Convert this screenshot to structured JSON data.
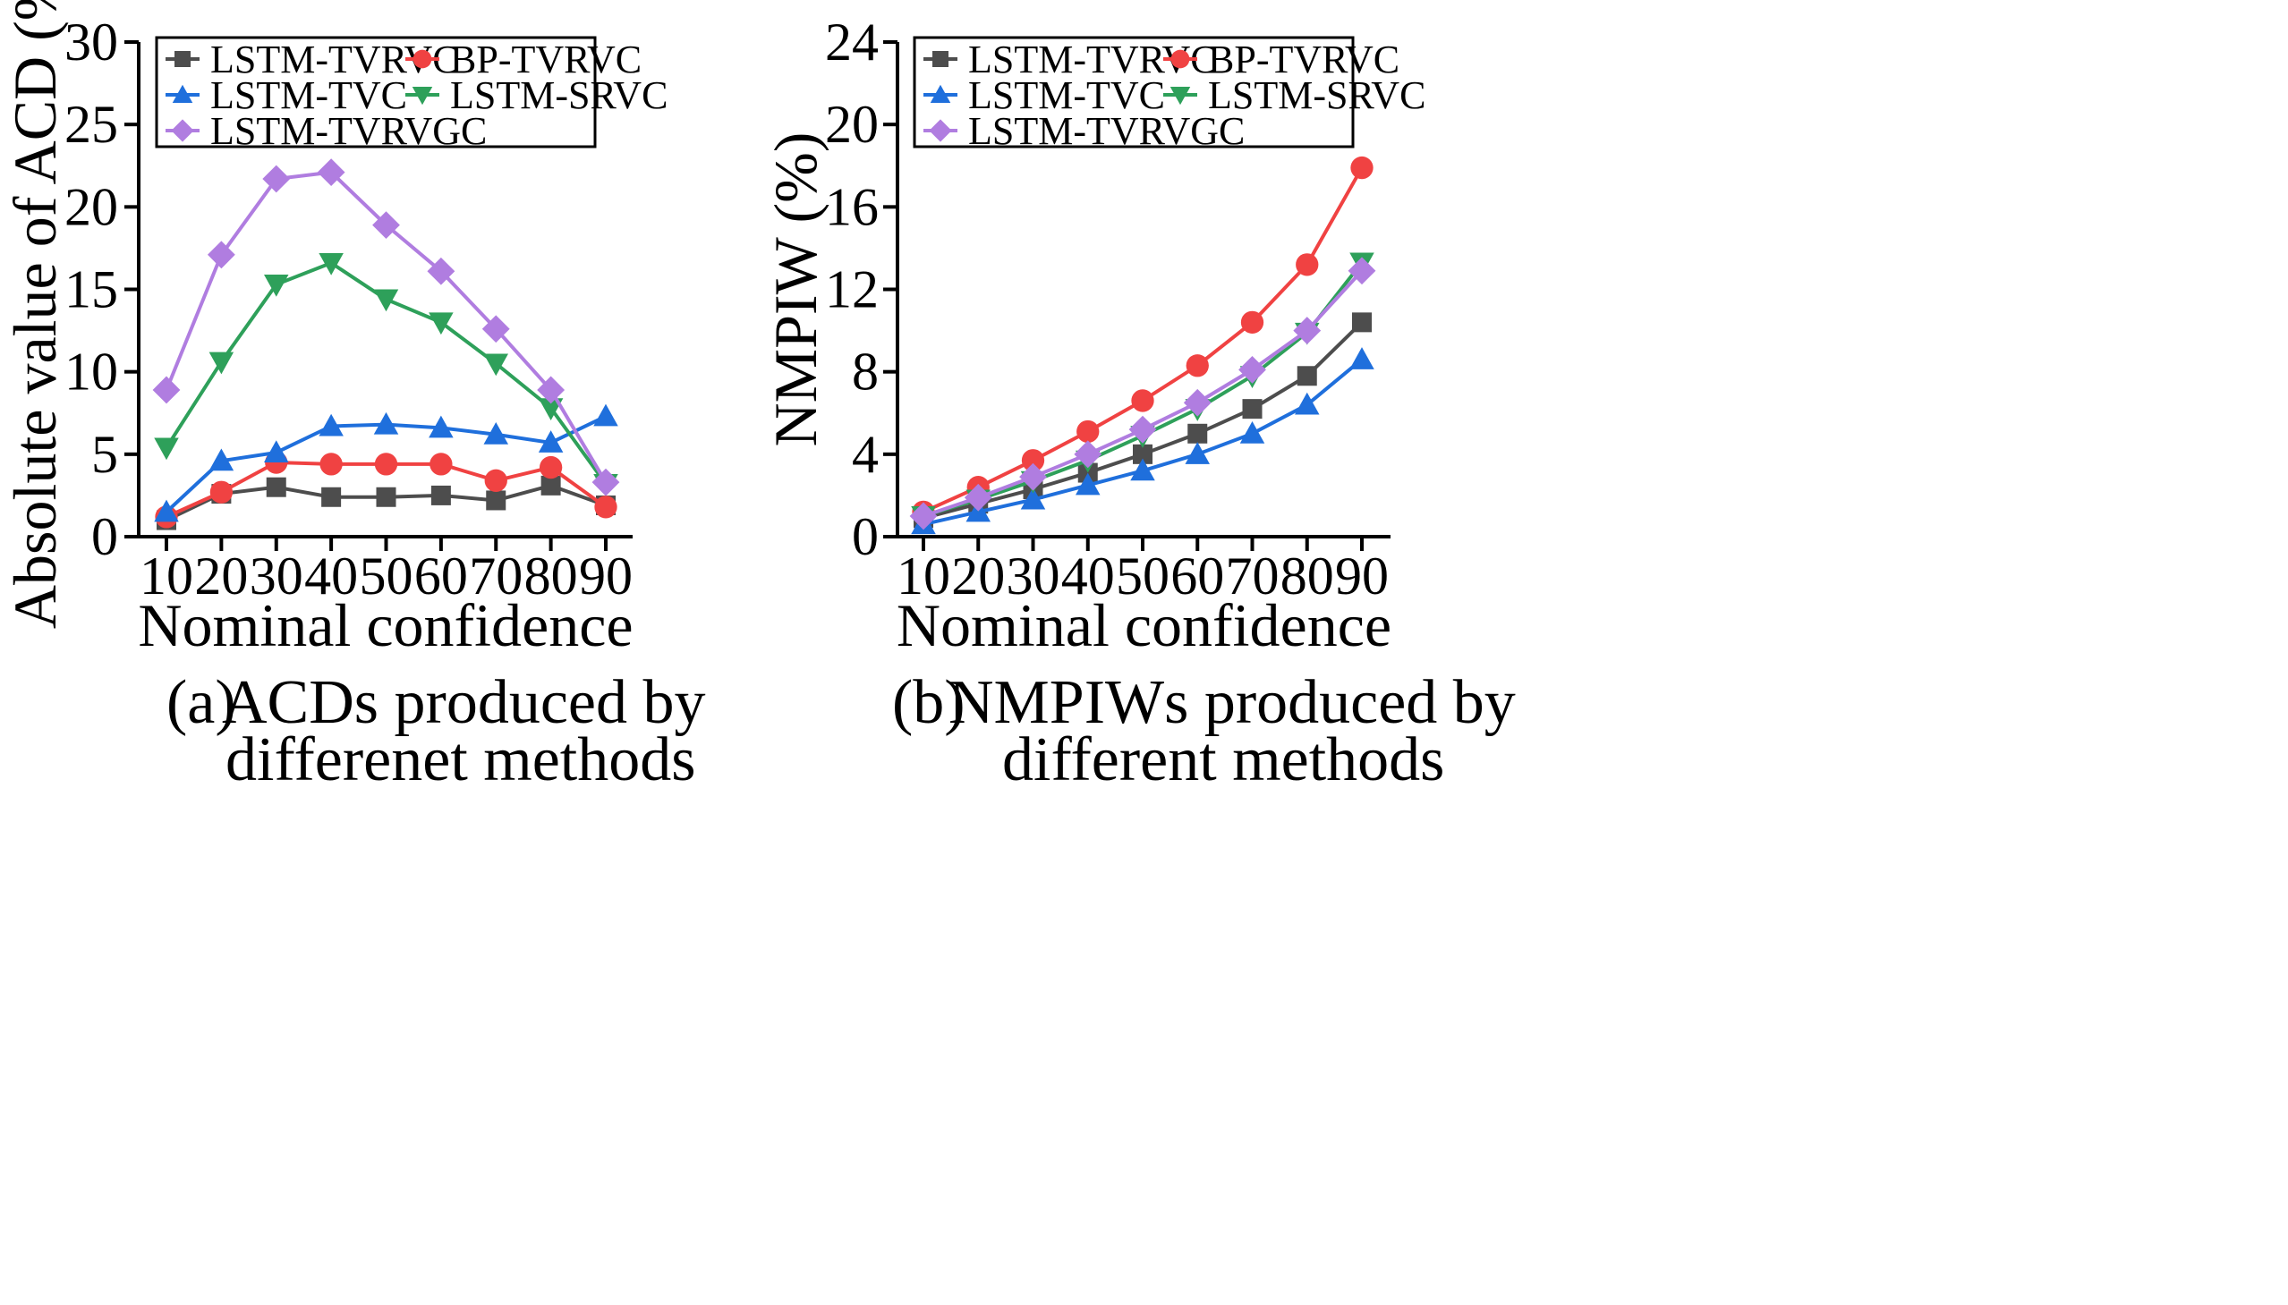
{
  "chart_data": [
    {
      "type": "line",
      "panel": "a",
      "categories": [
        10,
        20,
        30,
        40,
        50,
        60,
        70,
        80,
        90
      ],
      "xlabel": "Nominal confidence",
      "ylabel": "Absolute value of ACD (%)",
      "ylim": [
        0,
        30
      ],
      "yticks": [
        0,
        5,
        10,
        15,
        20,
        25,
        30
      ],
      "legend_position": "top",
      "caption_tag": "(a)",
      "caption_line1": "ACDs produced by",
      "caption_line2": "differenet methods",
      "series": [
        {
          "name": "LSTM-TVRVC",
          "color": "#4d4d4d",
          "marker": "square",
          "values": [
            1.0,
            2.6,
            3.0,
            2.4,
            2.4,
            2.5,
            2.2,
            3.1,
            1.9
          ]
        },
        {
          "name": "BP-TVRVC",
          "color": "#f04242",
          "marker": "circle",
          "values": [
            1.2,
            2.7,
            4.5,
            4.4,
            4.4,
            4.4,
            3.4,
            4.2,
            1.8
          ]
        },
        {
          "name": "LSTM-TVC",
          "color": "#1f6fdc",
          "marker": "triangle-up",
          "values": [
            1.5,
            4.6,
            5.1,
            6.7,
            6.8,
            6.6,
            6.2,
            5.7,
            7.3
          ]
        },
        {
          "name": "LSTM-SRVC",
          "color": "#2ea05a",
          "marker": "triangle-down",
          "values": [
            5.4,
            10.6,
            15.3,
            16.6,
            14.4,
            13.0,
            10.5,
            7.8,
            3.2
          ]
        },
        {
          "name": "LSTM-TVRVGC",
          "color": "#b07de0",
          "marker": "diamond",
          "values": [
            8.9,
            17.1,
            21.7,
            22.1,
            18.9,
            16.1,
            12.6,
            8.9,
            3.3
          ]
        }
      ]
    },
    {
      "type": "line",
      "panel": "b",
      "categories": [
        10,
        20,
        30,
        40,
        50,
        60,
        70,
        80,
        90
      ],
      "xlabel": "Nominal confidence",
      "ylabel": "NMPIW (%)",
      "ylim": [
        0,
        24
      ],
      "yticks": [
        0,
        4,
        8,
        12,
        16,
        20,
        24
      ],
      "legend_position": "top",
      "caption_tag": "(b)",
      "caption_line1": "NMPIWs produced by",
      "caption_line2": "different methods",
      "series": [
        {
          "name": "LSTM-TVRVC",
          "color": "#4d4d4d",
          "marker": "square",
          "values": [
            0.9,
            1.6,
            2.3,
            3.1,
            4.0,
            5.0,
            6.2,
            7.8,
            10.4
          ]
        },
        {
          "name": "BP-TVRVC",
          "color": "#f04242",
          "marker": "circle",
          "values": [
            1.2,
            2.4,
            3.7,
            5.1,
            6.6,
            8.3,
            10.4,
            13.2,
            17.9
          ]
        },
        {
          "name": "LSTM-TVC",
          "color": "#1f6fdc",
          "marker": "triangle-up",
          "values": [
            0.6,
            1.2,
            1.8,
            2.5,
            3.2,
            4.0,
            5.0,
            6.4,
            8.6
          ]
        },
        {
          "name": "LSTM-SRVC",
          "color": "#2ea05a",
          "marker": "triangle-down",
          "values": [
            1.0,
            1.8,
            2.7,
            3.7,
            4.9,
            6.2,
            7.8,
            9.9,
            13.3
          ]
        },
        {
          "name": "LSTM-TVRVGC",
          "color": "#b07de0",
          "marker": "diamond",
          "values": [
            1.0,
            1.9,
            2.9,
            4.0,
            5.2,
            6.5,
            8.1,
            10.0,
            12.9
          ]
        }
      ]
    }
  ]
}
